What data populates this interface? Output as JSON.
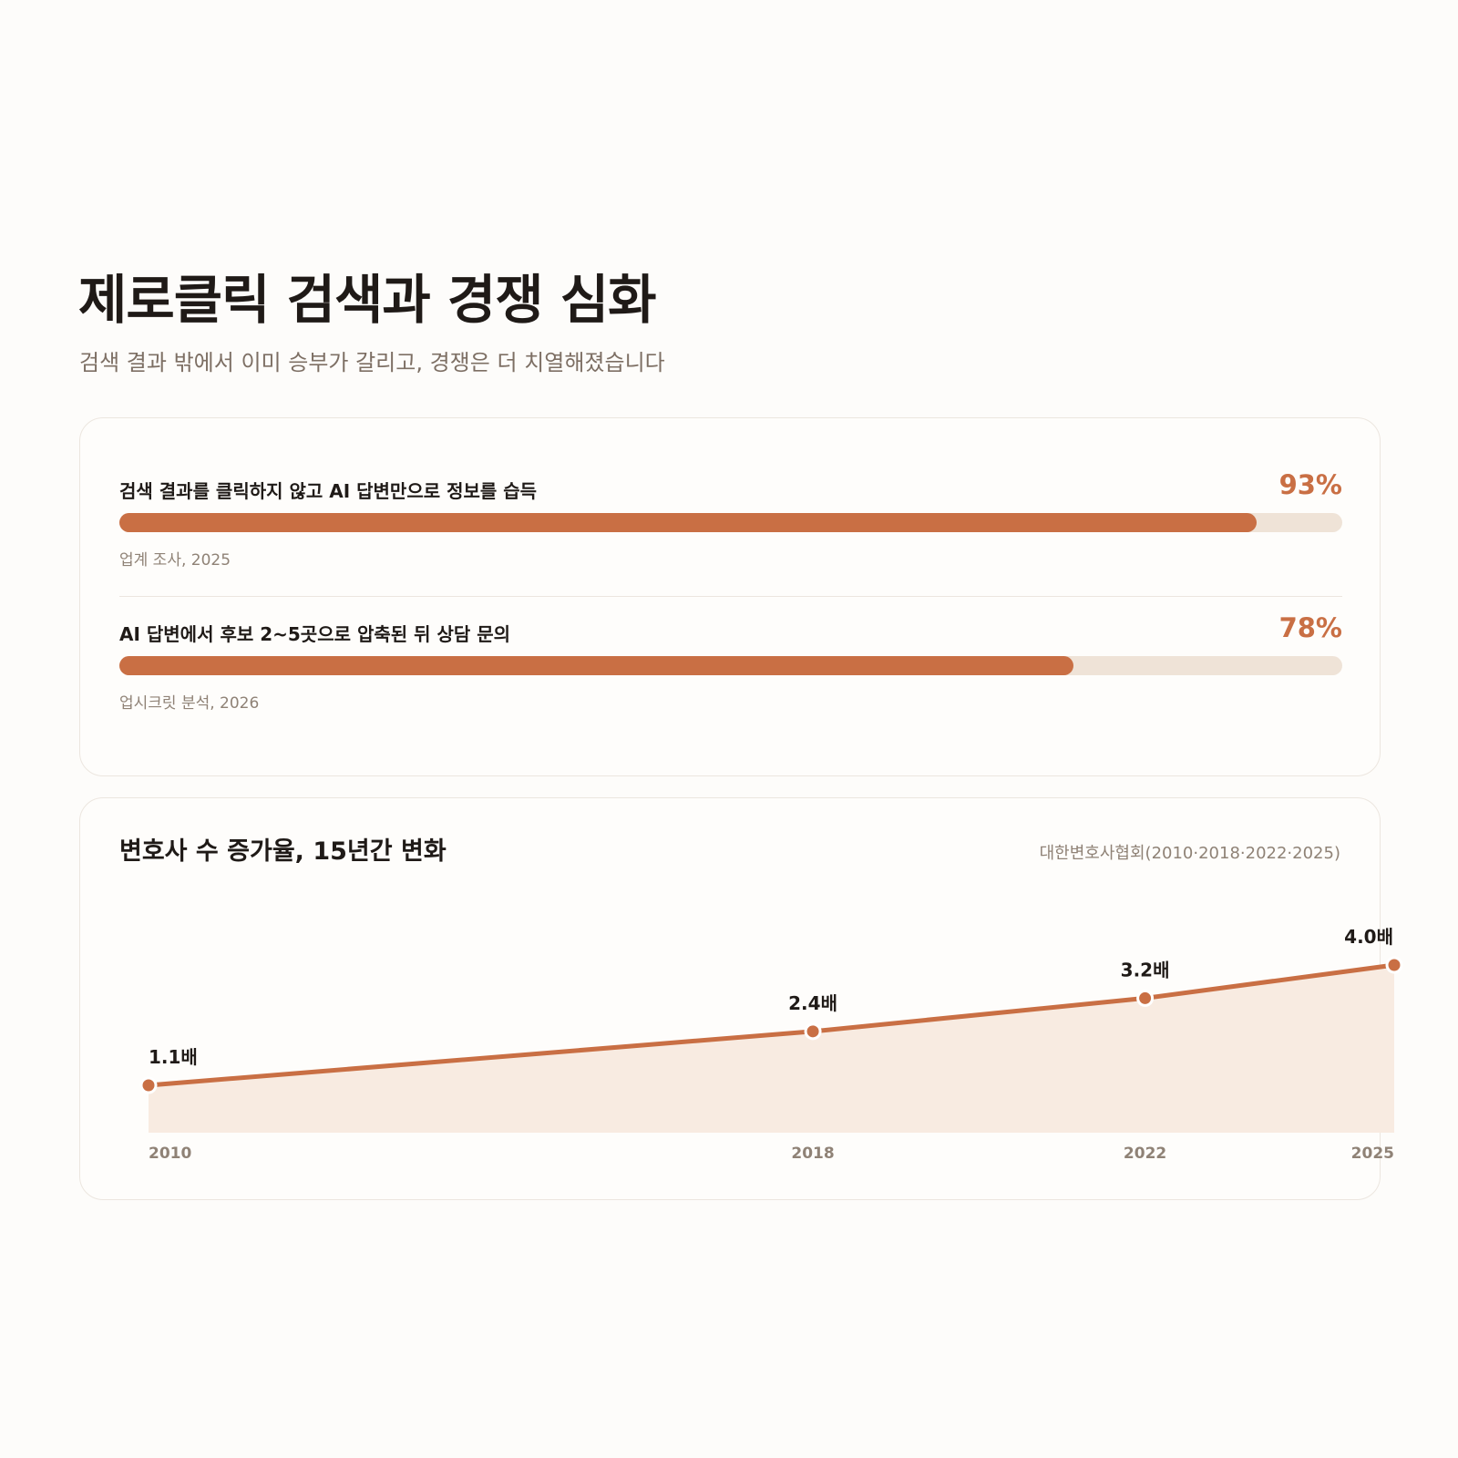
{
  "header": {
    "title": "제로클릭 검색과 경쟁 심화",
    "subtitle": "검색 결과 밖에서 이미 승부가 갈리고, 경쟁은 더 치열해졌습니다"
  },
  "stats": [
    {
      "label": "검색 결과를 클릭하지 않고 AI 답변만으로 정보를 습득",
      "value_text": "93%",
      "value": 93,
      "source": "업계 조사, 2025"
    },
    {
      "label": "AI 답변에서 후보 2~5곳으로 압축된 뒤 상담 문의",
      "value_text": "78%",
      "value": 78,
      "source": "업시크릿 분석, 2026"
    }
  ],
  "colors": {
    "accent": "#c96f44",
    "track": "#efe3d7",
    "area": "#f8ebe1",
    "text": "#1f1a17",
    "muted": "#8f8276",
    "background": "#fdfcfa"
  },
  "chart_data": {
    "type": "area",
    "title": "변호사 수 증가율, 15년간 변화",
    "source": "대한변호사협회(2010·2018·2022·2025)",
    "x": [
      2010,
      2018,
      2022,
      2025
    ],
    "x_labels": [
      "2010",
      "2018",
      "2022",
      "2025"
    ],
    "values": [
      1.1,
      2.4,
      3.2,
      4.0
    ],
    "value_labels": [
      "1.1배",
      "2.4배",
      "3.2배",
      "4.0배"
    ],
    "xlabel": "",
    "ylabel": "",
    "grid": false
  }
}
